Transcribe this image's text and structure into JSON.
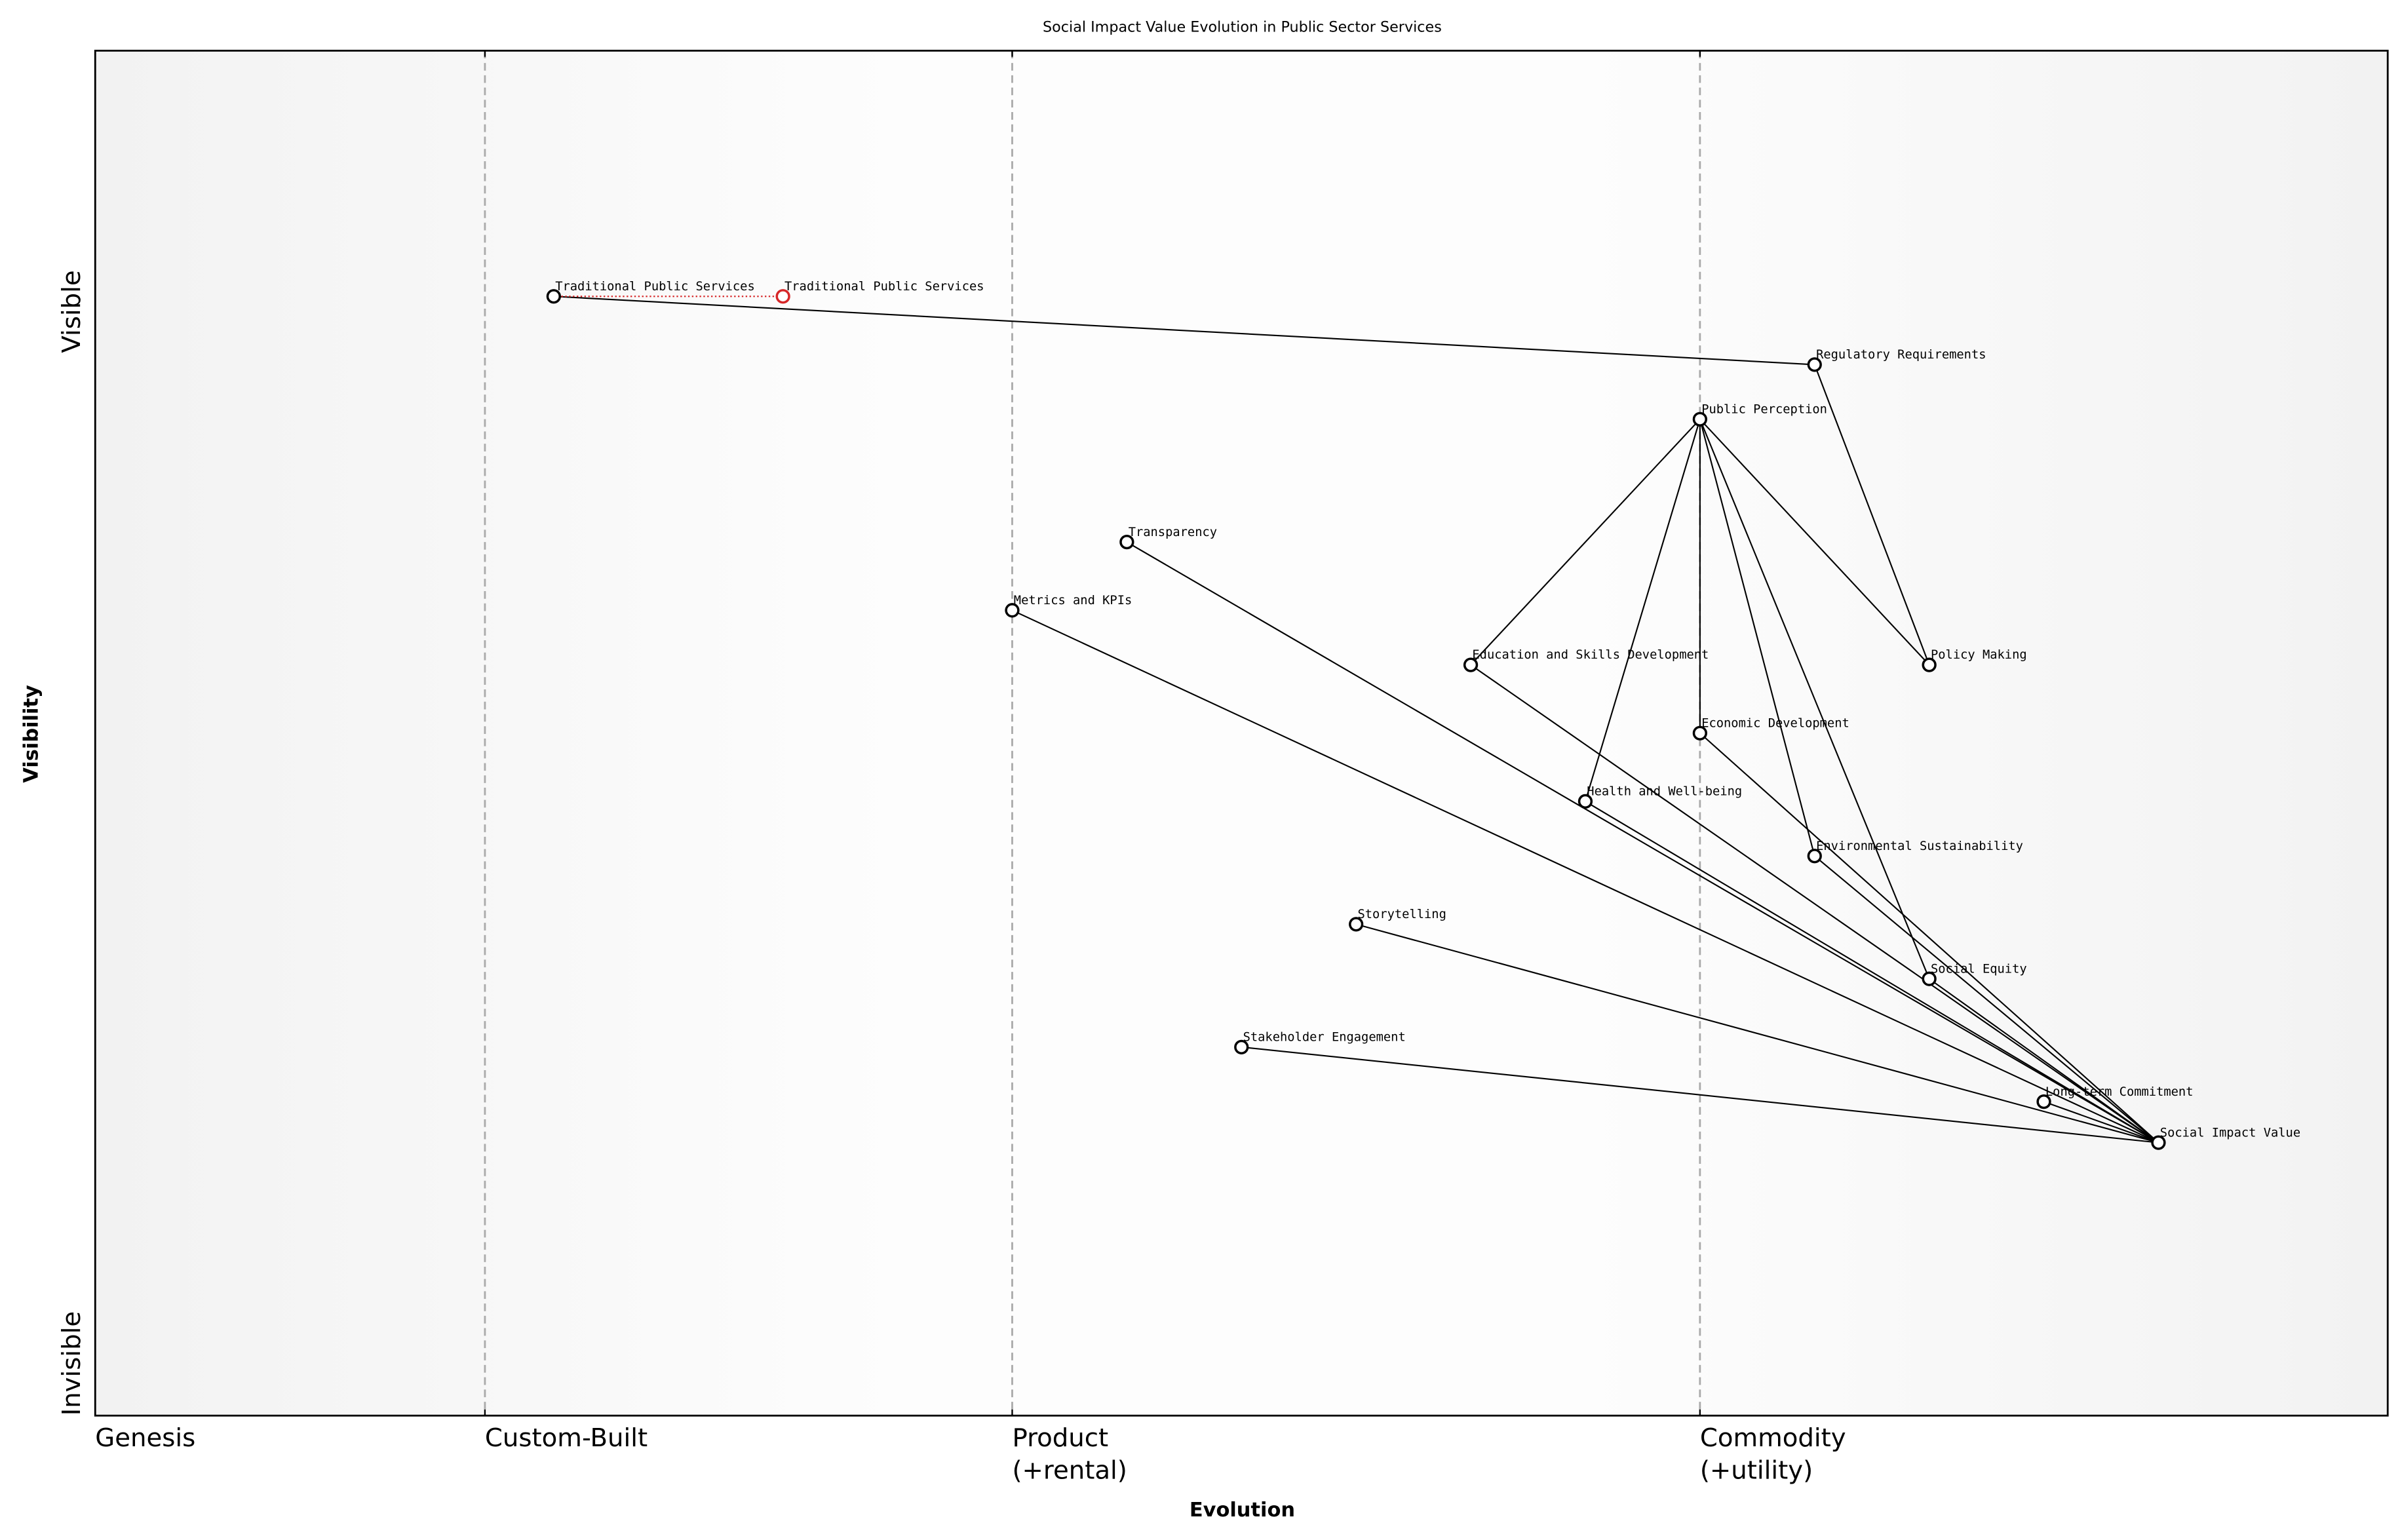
{
  "chart_data": {
    "type": "wardley",
    "title": "Social Impact Value Evolution in Public Sector Services",
    "xlabel": "Evolution",
    "ylabel": "Visibility",
    "xlim": [
      0,
      1
    ],
    "ylim": [
      0,
      1
    ],
    "xticks": [
      {
        "value": 0,
        "label": "Genesis"
      },
      {
        "value": 0.17,
        "label": "Custom-Built"
      },
      {
        "value": 0.4,
        "label": "Product\n(+rental)"
      },
      {
        "value": 0.7,
        "label": "Commodity\n(+utility)"
      }
    ],
    "yticks": [
      {
        "value": 0,
        "label": "Invisible"
      },
      {
        "value": 1,
        "label": "Visible"
      }
    ],
    "components": [
      {
        "name": "Traditional Public Services",
        "evolution": 0.2,
        "visibility": 0.82
      },
      {
        "name": "Regulatory Requirements",
        "evolution": 0.75,
        "visibility": 0.77
      },
      {
        "name": "Public Perception",
        "evolution": 0.7,
        "visibility": 0.73
      },
      {
        "name": "Transparency",
        "evolution": 0.45,
        "visibility": 0.64
      },
      {
        "name": "Metrics and KPIs",
        "evolution": 0.4,
        "visibility": 0.59
      },
      {
        "name": "Education and Skills Development",
        "evolution": 0.6,
        "visibility": 0.55
      },
      {
        "name": "Policy Making",
        "evolution": 0.8,
        "visibility": 0.55
      },
      {
        "name": "Economic Development",
        "evolution": 0.7,
        "visibility": 0.5
      },
      {
        "name": "Health and Well-being",
        "evolution": 0.65,
        "visibility": 0.45
      },
      {
        "name": "Environmental Sustainability",
        "evolution": 0.75,
        "visibility": 0.41
      },
      {
        "name": "Storytelling",
        "evolution": 0.55,
        "visibility": 0.36
      },
      {
        "name": "Social Equity",
        "evolution": 0.8,
        "visibility": 0.32
      },
      {
        "name": "Stakeholder Engagement",
        "evolution": 0.5,
        "visibility": 0.27
      },
      {
        "name": "Long-term Commitment",
        "evolution": 0.85,
        "visibility": 0.23
      },
      {
        "name": "Social Impact Value",
        "evolution": 0.9,
        "visibility": 0.2
      }
    ],
    "links": [
      [
        "Traditional Public Services",
        "Regulatory Requirements"
      ],
      [
        "Regulatory Requirements",
        "Policy Making"
      ],
      [
        "Public Perception",
        "Education and Skills Development"
      ],
      [
        "Public Perception",
        "Health and Well-being"
      ],
      [
        "Public Perception",
        "Economic Development"
      ],
      [
        "Public Perception",
        "Environmental Sustainability"
      ],
      [
        "Public Perception",
        "Social Equity"
      ],
      [
        "Public Perception",
        "Policy Making"
      ],
      [
        "Transparency",
        "Social Impact Value"
      ],
      [
        "Metrics and KPIs",
        "Social Impact Value"
      ],
      [
        "Education and Skills Development",
        "Social Impact Value"
      ],
      [
        "Economic Development",
        "Social Impact Value"
      ],
      [
        "Health and Well-being",
        "Social Impact Value"
      ],
      [
        "Environmental Sustainability",
        "Social Impact Value"
      ],
      [
        "Storytelling",
        "Social Impact Value"
      ],
      [
        "Social Equity",
        "Social Impact Value"
      ],
      [
        "Stakeholder Engagement",
        "Social Impact Value"
      ],
      [
        "Long-term Commitment",
        "Social Impact Value"
      ]
    ],
    "evolve": [
      {
        "name": "Traditional Public Services",
        "evolution": 0.3,
        "color": "#d62728"
      }
    ]
  }
}
